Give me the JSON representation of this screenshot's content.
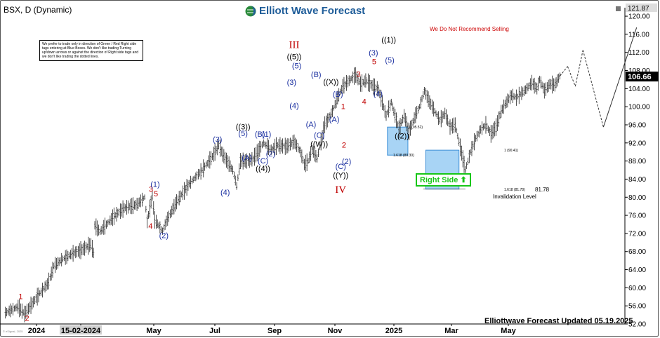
{
  "header": {
    "title": "BSX, D (Dynamic)",
    "logo_text": "Elliott Wave Forecast",
    "note": "We prefer to trade only in direction of Green / Red Right side tags entering at Blue Boxes. We don't like trading Turning up/down arrows or against the direction of Right side tags and we don't like trading the dotted lines.",
    "warning": "We Do Not Recommend Selling",
    "right_side": "Right Side",
    "updated": "Elliottwave Forecast Updated 05.19.2025",
    "watermark": "© eSignal, 2025"
  },
  "chart_data": {
    "type": "ohlc",
    "symbol": "BSX",
    "interval": "D",
    "ylim": [
      52,
      121.87
    ],
    "yticks": [
      52,
      56,
      60,
      64,
      68,
      72,
      76,
      80,
      84,
      88,
      92,
      96,
      100,
      104,
      108,
      112,
      116,
      120
    ],
    "ytick_labels": [
      "52.00",
      "56.00",
      "60.00",
      "64.00",
      "68.00",
      "72.00",
      "76.00",
      "80.00",
      "84.00",
      "88.00",
      "92.00",
      "96.00",
      "100.00",
      "104.00",
      "108.00",
      "112.00",
      "116.00",
      "120.00"
    ],
    "xlabels": [
      "2024",
      "15-02-2024",
      "May",
      "Jul",
      "Sep",
      "Nov",
      "2025",
      "Mar",
      "May"
    ],
    "last_price": "106.66",
    "top_value": "121.87",
    "price_path": [
      [
        1.0,
        54.5
      ],
      [
        6.0,
        55.8
      ],
      [
        8.5,
        54.2
      ],
      [
        14.5,
        58.8
      ],
      [
        17.7,
        61
      ],
      [
        20,
        64.8
      ],
      [
        23,
        66.2
      ],
      [
        27,
        67.5
      ],
      [
        31,
        68.4
      ],
      [
        34.5,
        69.6
      ],
      [
        35.6,
        67.5
      ],
      [
        36,
        73.8
      ],
      [
        38,
        72.4
      ],
      [
        43.5,
        75.8
      ],
      [
        47.5,
        77.6
      ],
      [
        52.5,
        78.4
      ],
      [
        55.5,
        80
      ],
      [
        56.5,
        74.7
      ],
      [
        58.5,
        80.3
      ],
      [
        59.5,
        75
      ],
      [
        62.5,
        72.5
      ],
      [
        64,
        74.7
      ],
      [
        68,
        79
      ],
      [
        73,
        83
      ],
      [
        78,
        86
      ],
      [
        82,
        89
      ],
      [
        84.5,
        91.5
      ],
      [
        86,
        89.5
      ],
      [
        90,
        86
      ],
      [
        91.5,
        82.5
      ],
      [
        93,
        88
      ],
      [
        96,
        88
      ],
      [
        98,
        88.5
      ],
      [
        102,
        92
      ],
      [
        105,
        90.5
      ],
      [
        107.5,
        91.5
      ],
      [
        111,
        91.2
      ],
      [
        114,
        92.3
      ],
      [
        116.5,
        90
      ],
      [
        118,
        87.2
      ],
      [
        119.5,
        88
      ],
      [
        121,
        90.5
      ],
      [
        123,
        88.6
      ],
      [
        126,
        96
      ],
      [
        129,
        99
      ],
      [
        131,
        102
      ],
      [
        133,
        104.5
      ],
      [
        136,
        106
      ],
      [
        138,
        107
      ],
      [
        140,
        105
      ],
      [
        142,
        105.8
      ],
      [
        145,
        104.5
      ],
      [
        147,
        103.8
      ],
      [
        150,
        98
      ],
      [
        152,
        101
      ],
      [
        155,
        95
      ],
      [
        157,
        98
      ],
      [
        159,
        94.5
      ],
      [
        161,
        97.5
      ],
      [
        163,
        100
      ],
      [
        165,
        103.5
      ],
      [
        167,
        101
      ],
      [
        169,
        99
      ],
      [
        171,
        97
      ],
      [
        173,
        98.5
      ],
      [
        175,
        95.5
      ],
      [
        177,
        96
      ],
      [
        179,
        91
      ],
      [
        181,
        86
      ],
      [
        183,
        90
      ],
      [
        185,
        93
      ],
      [
        187,
        95
      ],
      [
        189,
        96
      ],
      [
        191,
        94
      ],
      [
        193,
        95.5
      ],
      [
        195,
        99
      ],
      [
        197,
        101
      ],
      [
        199,
        102.5
      ],
      [
        201,
        102
      ],
      [
        203,
        103
      ],
      [
        205,
        104
      ],
      [
        207,
        105.3
      ],
      [
        209,
        104
      ],
      [
        210,
        106
      ],
      [
        212,
        103.5
      ],
      [
        214,
        105
      ],
      [
        216,
        104.8
      ],
      [
        218,
        106.8
      ]
    ],
    "invalidation_value": 81.78,
    "invalidation_label": "Invalidation Level",
    "invalidation_text": "81.78",
    "fib_labels": [
      {
        "text": "1.618 (89.30)",
        "price": 89.3
      },
      {
        "text": "1 (95.52)",
        "price": 95.52
      },
      {
        "text": "1 (90.41)",
        "price": 90.41
      },
      {
        "text": "1.618 (81.78)",
        "price": 81.78
      }
    ],
    "blue_boxes": [
      {
        "x0": 150.5,
        "x1": 158.5,
        "p_top": 95.5,
        "p_bottom": 89.3
      },
      {
        "x0": 165.5,
        "x1": 178.5,
        "p_top": 90.4,
        "p_bottom": 81.8
      }
    ],
    "projection": [
      [
        218,
        106.8
      ],
      [
        221,
        108.9
      ],
      [
        224,
        104.5
      ],
      [
        227,
        112.5
      ],
      [
        235,
        95.5
      ],
      [
        248,
        117.5
      ]
    ],
    "projection_dotted": [
      true,
      true,
      true,
      true,
      false
    ],
    "wave_labels": [
      {
        "text": "1",
        "bar": 7.0,
        "price": 57.5,
        "color": "red"
      },
      {
        "text": "2",
        "bar": 9.5,
        "price": 52.7,
        "color": "red"
      },
      {
        "text": "3",
        "bar": 58.0,
        "price": 81.2,
        "color": "red"
      },
      {
        "text": "5",
        "bar": 59.9,
        "price": 80.2,
        "color": "red"
      },
      {
        "text": "(1)",
        "bar": 59.6,
        "price": 82.3,
        "color": "blue"
      },
      {
        "text": "4",
        "bar": 57.8,
        "price": 73.1,
        "color": "red"
      },
      {
        "text": "(2)",
        "bar": 63.0,
        "price": 71.0,
        "color": "blue"
      },
      {
        "text": "(3)",
        "bar": 84.0,
        "price": 92.2,
        "color": "blue"
      },
      {
        "text": "(4)",
        "bar": 87.0,
        "price": 80.5,
        "color": "blue"
      },
      {
        "text": "(5)",
        "bar": 94.0,
        "price": 93.5,
        "color": "blue"
      },
      {
        "text": "((3))",
        "bar": 94.0,
        "price": 95.0,
        "color": "black"
      },
      {
        "text": "(A)",
        "bar": 95.5,
        "price": 88.2,
        "color": "blue"
      },
      {
        "text": "(B)",
        "bar": 100.6,
        "price": 93.4,
        "color": "blue"
      },
      {
        "text": "(1)",
        "bar": 103.2,
        "price": 93.4,
        "color": "blue"
      },
      {
        "text": "(C)",
        "bar": 101.8,
        "price": 87.5,
        "color": "blue"
      },
      {
        "text": "((4))",
        "bar": 101.8,
        "price": 85.8,
        "color": "black"
      },
      {
        "text": "(2)",
        "bar": 104.8,
        "price": 89.0,
        "color": "blue"
      },
      {
        "text": "III",
        "bar": 114.0,
        "price": 113.0,
        "color": "red"
      },
      {
        "text": "((5))",
        "bar": 114.0,
        "price": 110.5,
        "color": "black"
      },
      {
        "text": "(5)",
        "bar": 115.0,
        "price": 108.5,
        "color": "blue"
      },
      {
        "text": "(3)",
        "bar": 113.0,
        "price": 104.8,
        "color": "blue"
      },
      {
        "text": "(4)",
        "bar": 114.0,
        "price": 99.6,
        "color": "blue"
      },
      {
        "text": "(B)",
        "bar": 122.6,
        "price": 106.5,
        "color": "blue"
      },
      {
        "text": "(A)",
        "bar": 120.6,
        "price": 95.5,
        "color": "blue"
      },
      {
        "text": "(C)",
        "bar": 123.8,
        "price": 93.1,
        "color": "blue"
      },
      {
        "text": "((W))",
        "bar": 123.8,
        "price": 91.2,
        "color": "black"
      },
      {
        "text": "((X))",
        "bar": 128.4,
        "price": 104.9,
        "color": "black"
      },
      {
        "text": "(B)",
        "bar": 131.1,
        "price": 102.2,
        "color": "blue"
      },
      {
        "text": "(A)",
        "bar": 129.7,
        "price": 96.6,
        "color": "blue"
      },
      {
        "text": "1",
        "bar": 133.2,
        "price": 99.5,
        "color": "red"
      },
      {
        "text": "2",
        "bar": 133.5,
        "price": 91.0,
        "color": "red"
      },
      {
        "text": "(2)",
        "bar": 134.5,
        "price": 87.3,
        "color": "blue"
      },
      {
        "text": "(C)",
        "bar": 132.2,
        "price": 86.2,
        "color": "blue"
      },
      {
        "text": "((Y))",
        "bar": 132.2,
        "price": 84.3,
        "color": "black"
      },
      {
        "text": "IV",
        "bar": 132.2,
        "price": 81.0,
        "color": "red"
      },
      {
        "text": "3",
        "bar": 139.2,
        "price": 106.6,
        "color": "red"
      },
      {
        "text": "4",
        "bar": 141.4,
        "price": 100.6,
        "color": "red"
      },
      {
        "text": "5",
        "bar": 145.3,
        "price": 109.4,
        "color": "red"
      },
      {
        "text": "(3)",
        "bar": 145.0,
        "price": 111.3,
        "color": "blue"
      },
      {
        "text": "(4)",
        "bar": 146.8,
        "price": 102.3,
        "color": "blue"
      },
      {
        "text": "(5)",
        "bar": 151.4,
        "price": 109.7,
        "color": "blue"
      },
      {
        "text": "((1))",
        "bar": 151.0,
        "price": 114.2,
        "color": "black"
      },
      {
        "text": "((2))",
        "bar": 156.2,
        "price": 93.0,
        "color": "black"
      }
    ]
  }
}
